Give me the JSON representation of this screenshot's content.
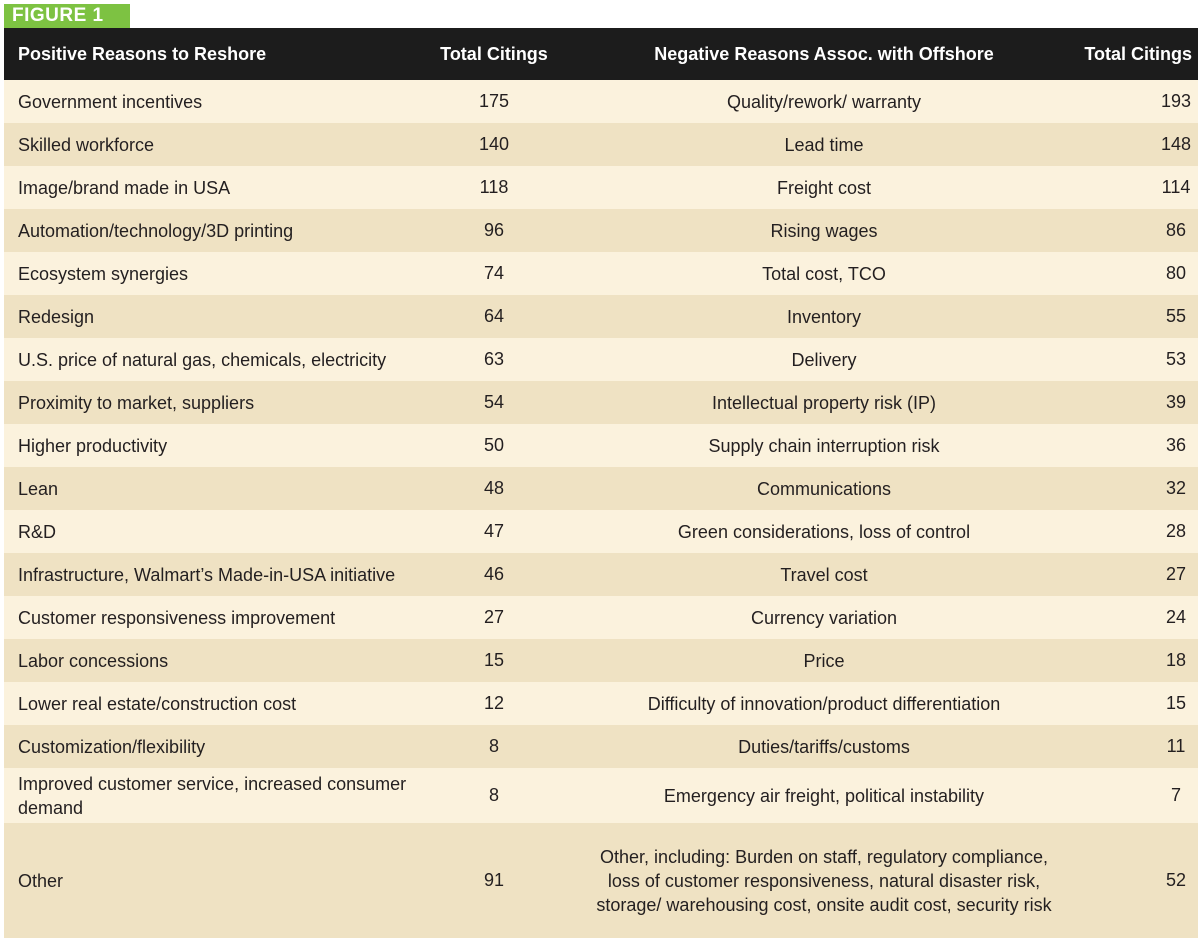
{
  "figure_label": "FIGURE 1",
  "headers": {
    "positive": "Positive Reasons to Reshore",
    "positive_count": "Total Citings",
    "negative": "Negative Reasons Assoc. with Offshore",
    "negative_count": "Total Citings"
  },
  "rows": [
    {
      "positive": "Government incentives",
      "positive_count": "175",
      "negative": "Quality/rework/ warranty",
      "negative_count": "193"
    },
    {
      "positive": "Skilled workforce",
      "positive_count": "140",
      "negative": "Lead time",
      "negative_count": "148"
    },
    {
      "positive": "Image/brand made in USA",
      "positive_count": "118",
      "negative": "Freight cost",
      "negative_count": "114"
    },
    {
      "positive": "Automation/technology/3D printing",
      "positive_count": "96",
      "negative": "Rising wages",
      "negative_count": "86"
    },
    {
      "positive": "Ecosystem synergies",
      "positive_count": "74",
      "negative": "Total cost, TCO",
      "negative_count": "80"
    },
    {
      "positive": "Redesign",
      "positive_count": "64",
      "negative": "Inventory",
      "negative_count": "55"
    },
    {
      "positive": "U.S. price of natural gas, chemicals, electricity",
      "positive_count": "63",
      "negative": "Delivery",
      "negative_count": "53"
    },
    {
      "positive": "Proximity to market, suppliers",
      "positive_count": "54",
      "negative": "Intellectual property risk (IP)",
      "negative_count": "39"
    },
    {
      "positive": "Higher productivity",
      "positive_count": "50",
      "negative": "Supply chain interruption risk",
      "negative_count": "36"
    },
    {
      "positive": "Lean",
      "positive_count": "48",
      "negative": "Communications",
      "negative_count": "32"
    },
    {
      "positive": "R&D",
      "positive_count": "47",
      "negative": "Green considerations, loss of control",
      "negative_count": "28"
    },
    {
      "positive": "Infrastructure, Walmart’s Made-in-USA initiative",
      "positive_count": "46",
      "negative": "Travel cost",
      "negative_count": "27"
    },
    {
      "positive": "Customer responsiveness improvement",
      "positive_count": "27",
      "negative": "Currency variation",
      "negative_count": "24"
    },
    {
      "positive": "Labor concessions",
      "positive_count": "15",
      "negative": "Price",
      "negative_count": "18"
    },
    {
      "positive": "Lower real estate/construction cost",
      "positive_count": "12",
      "negative": "Difficulty of innovation/product differentiation",
      "negative_count": "15"
    },
    {
      "positive": "Customization/flexibility",
      "positive_count": "8",
      "negative": "Duties/tariffs/customs",
      "negative_count": "11"
    },
    {
      "positive": "Improved customer service, increased consumer demand",
      "positive_count": "8",
      "negative": "Emergency air freight, political instability",
      "negative_count": "7"
    },
    {
      "positive": "Other",
      "positive_count": "91",
      "negative": "Other, including: Burden on staff, regulatory compliance, loss of customer responsiveness, natural disaster risk, storage/ warehousing cost, onsite audit cost, security risk",
      "negative_count": "52"
    }
  ],
  "colors": {
    "accent_green": "#7dc242",
    "header_bg": "#1c1c1c",
    "row_light": "#fbf2dd",
    "row_dark": "#efe2c3"
  }
}
